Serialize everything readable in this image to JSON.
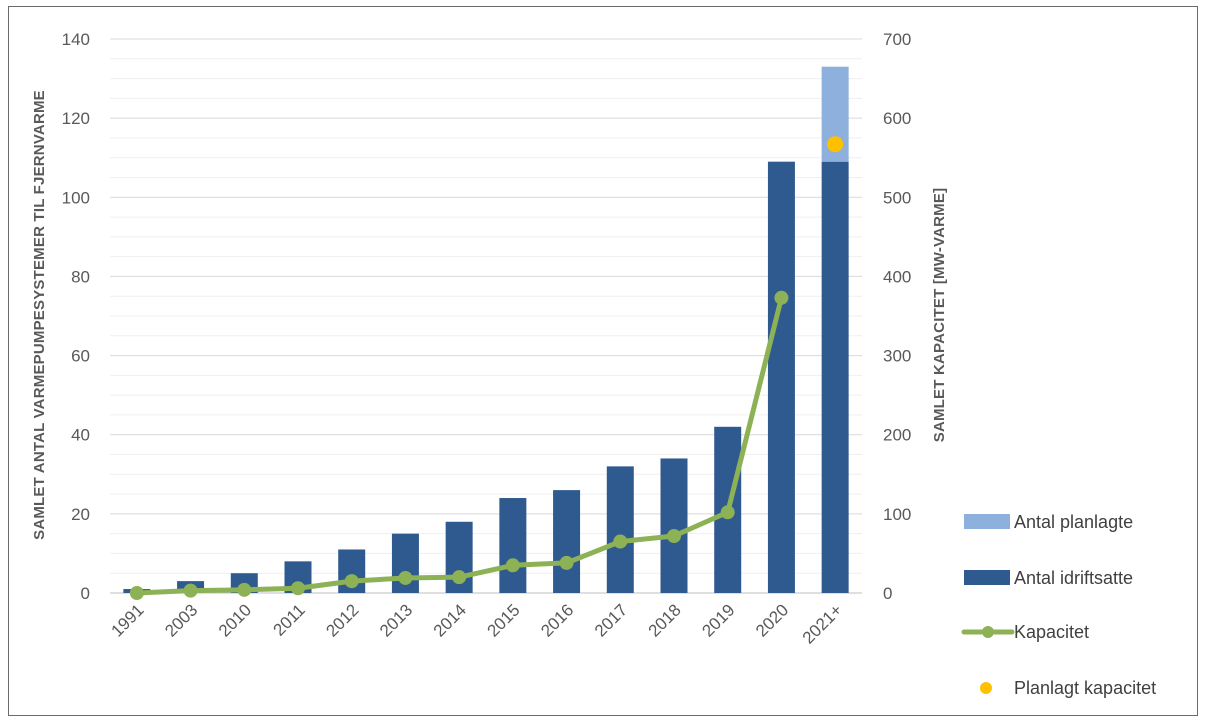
{
  "chart_data": {
    "type": "bar",
    "categories": [
      "1991",
      "2003",
      "2010",
      "2011",
      "2012",
      "2013",
      "2014",
      "2015",
      "2016",
      "2017",
      "2018",
      "2019",
      "2020",
      "2021+"
    ],
    "series": [
      {
        "name": "Antal idriftsatte",
        "type": "bar",
        "axis": "left",
        "values": [
          1,
          3,
          5,
          8,
          11,
          15,
          18,
          24,
          26,
          32,
          34,
          42,
          109,
          109
        ]
      },
      {
        "name": "Antal planlagte",
        "type": "bar-stacked",
        "axis": "left",
        "values": [
          0,
          0,
          0,
          0,
          0,
          0,
          0,
          0,
          0,
          0,
          0,
          0,
          0,
          24
        ]
      },
      {
        "name": "Kapacitet",
        "type": "line",
        "axis": "right",
        "values": [
          0,
          3,
          4,
          6,
          15,
          19,
          20,
          35,
          38,
          65,
          72,
          102,
          373,
          null
        ]
      },
      {
        "name": "Planlagt kapacitet",
        "type": "point",
        "axis": "right",
        "values": [
          null,
          null,
          null,
          null,
          null,
          null,
          null,
          null,
          null,
          null,
          null,
          null,
          null,
          567
        ]
      }
    ],
    "ylabel": "SAMLET ANTAL VARMEPUMPESYSTEMER TIL FJERNVARME",
    "y2label": "SAMLET KAPACITET [MW-VARME]",
    "ylim": [
      0,
      140
    ],
    "y2lim": [
      0,
      700
    ],
    "yticks": [
      0,
      20,
      40,
      60,
      80,
      100,
      120,
      140
    ],
    "y2ticks": [
      0,
      100,
      200,
      300,
      400,
      500,
      600,
      700
    ],
    "grid": true,
    "legend_position": "right",
    "colors": {
      "idriftsatte": "#2f5a8f",
      "planlagte": "#8eb0dc",
      "kapacitet": "#8db255",
      "planlagt_kapacitet": "#ffc000",
      "grid": "#e3e3e3"
    }
  }
}
